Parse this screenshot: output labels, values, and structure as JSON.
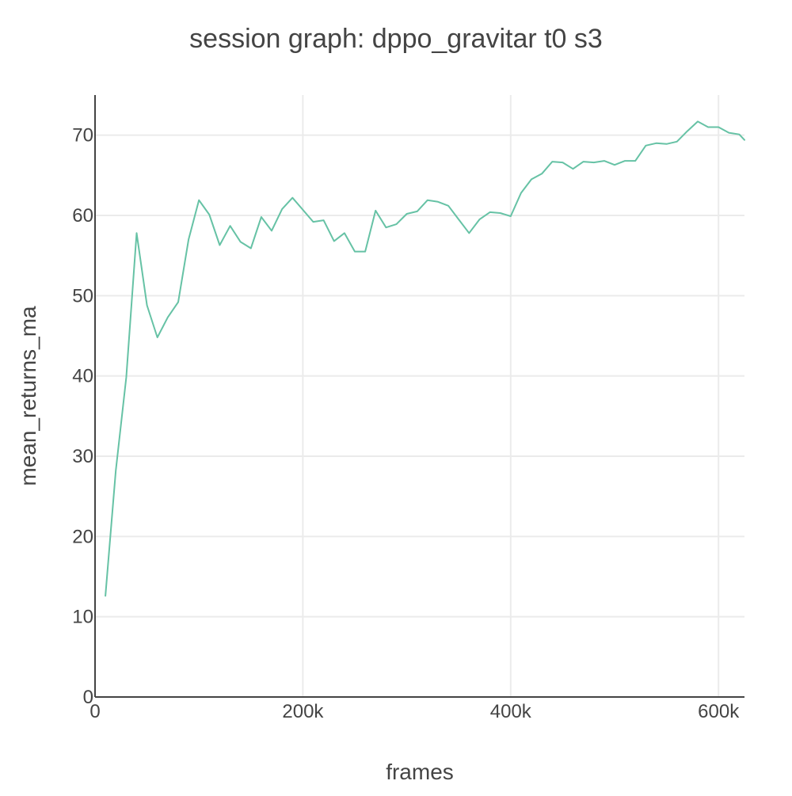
{
  "chart_data": {
    "type": "line",
    "title": "session graph: dppo_gravitar t0 s3",
    "xlabel": "frames",
    "ylabel": "mean_returns_ma",
    "xlim": [
      0,
      625000
    ],
    "ylim": [
      0,
      75
    ],
    "x_ticks": [
      {
        "value": 0,
        "label": "0"
      },
      {
        "value": 200000,
        "label": "200k"
      },
      {
        "value": 400000,
        "label": "400k"
      },
      {
        "value": 600000,
        "label": "600k"
      }
    ],
    "y_ticks": [
      {
        "value": 0,
        "label": "0"
      },
      {
        "value": 10,
        "label": "10"
      },
      {
        "value": 20,
        "label": "20"
      },
      {
        "value": 30,
        "label": "30"
      },
      {
        "value": 40,
        "label": "40"
      },
      {
        "value": 50,
        "label": "50"
      },
      {
        "value": 60,
        "label": "60"
      },
      {
        "value": 70,
        "label": "70"
      }
    ],
    "grid": true,
    "legend": "none",
    "series": [
      {
        "color": "#66c2a5",
        "x": [
          10000,
          20000,
          30000,
          40000,
          50000,
          60000,
          70000,
          80000,
          90000,
          100000,
          110000,
          120000,
          130000,
          140000,
          150000,
          160000,
          170000,
          180000,
          190000,
          200000,
          210000,
          220000,
          230000,
          240000,
          250000,
          260000,
          270000,
          280000,
          290000,
          300000,
          310000,
          320000,
          330000,
          340000,
          350000,
          360000,
          370000,
          380000,
          390000,
          400000,
          410000,
          420000,
          430000,
          440000,
          450000,
          460000,
          470000,
          480000,
          490000,
          500000,
          510000,
          520000,
          530000,
          540000,
          550000,
          560000,
          570000,
          580000,
          590000,
          600000,
          610000,
          620000,
          625000
        ],
        "y": [
          12.6,
          28.2,
          39.8,
          57.8,
          48.8,
          44.8,
          47.3,
          49.2,
          57.0,
          61.9,
          60.1,
          56.3,
          58.7,
          56.7,
          55.9,
          59.8,
          58.1,
          60.8,
          62.2,
          60.7,
          59.2,
          59.4,
          56.8,
          57.8,
          55.5,
          55.5,
          60.6,
          58.5,
          58.9,
          60.2,
          60.5,
          61.9,
          61.7,
          61.2,
          59.5,
          57.8,
          59.5,
          60.4,
          60.3,
          59.9,
          62.8,
          64.5,
          65.2,
          66.7,
          66.6,
          65.8,
          66.7,
          66.6,
          66.8,
          66.3,
          66.8,
          66.8,
          68.7,
          69.0,
          68.9,
          69.2,
          70.5,
          71.7,
          71.0,
          71.0,
          70.3,
          70.1,
          69.4
        ]
      }
    ]
  }
}
